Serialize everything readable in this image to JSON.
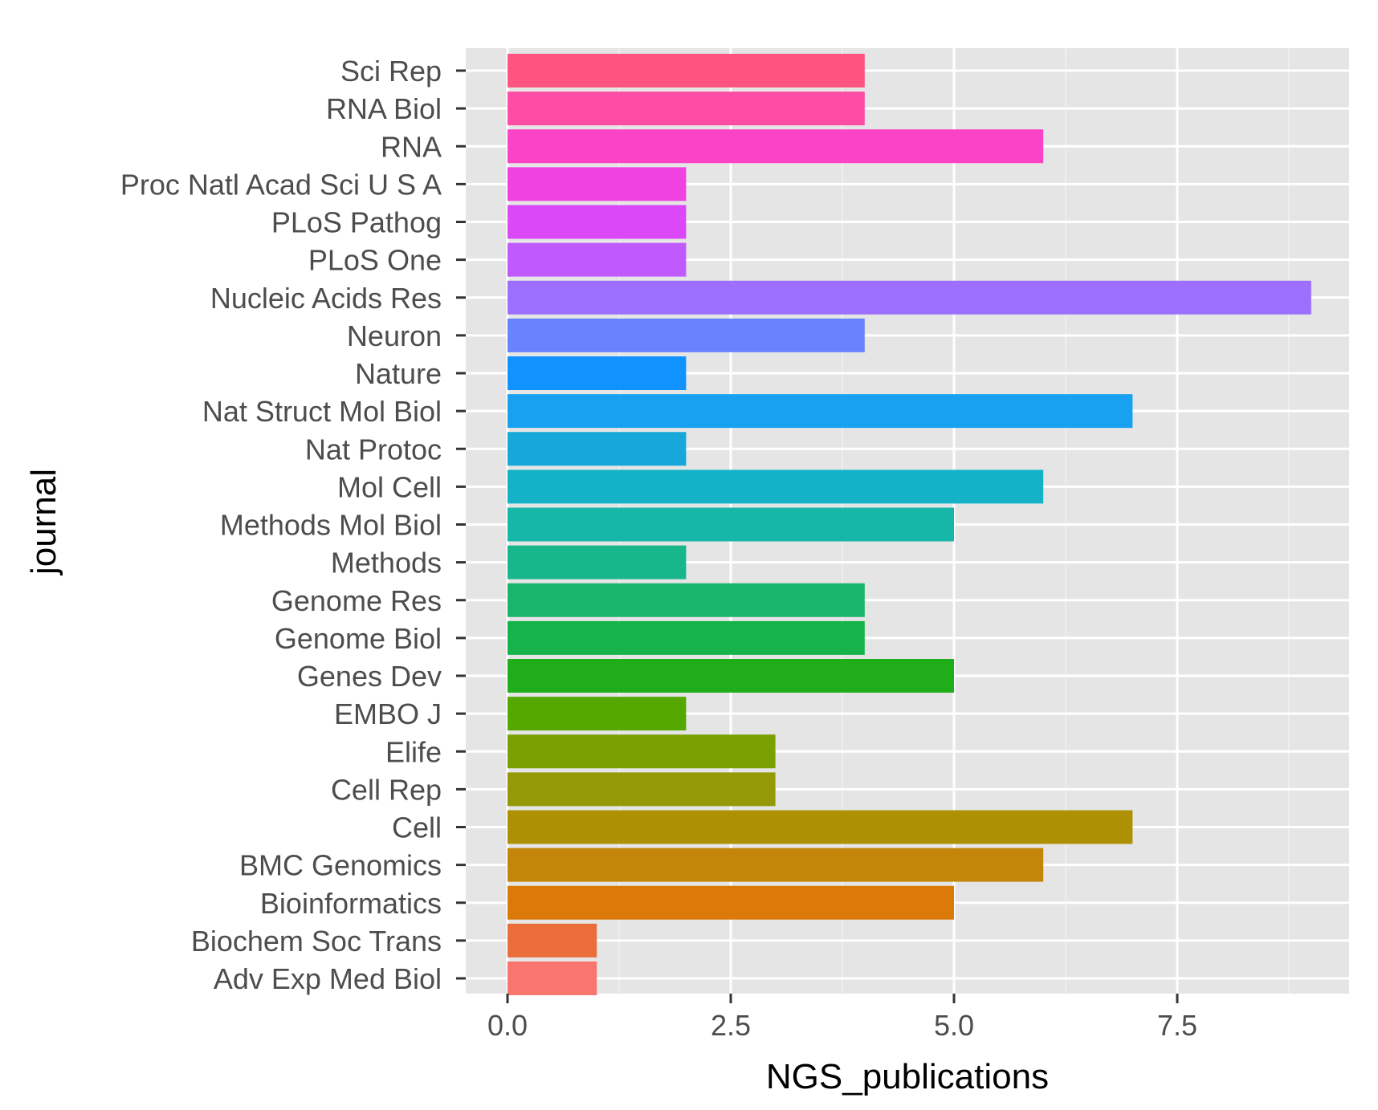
{
  "chart_data": {
    "type": "bar",
    "orientation": "horizontal",
    "xlabel": "NGS_publications",
    "ylabel": "journal",
    "xlim": [
      0,
      9.45
    ],
    "x_ticks": [
      "0.0",
      "2.5",
      "5.0",
      "7.5"
    ],
    "x_tick_values": [
      0,
      2.5,
      5,
      7.5
    ],
    "grid": true,
    "legend": "none",
    "categories": [
      "Adv Exp Med Biol",
      "Biochem Soc Trans",
      "Bioinformatics",
      "BMC Genomics",
      "Cell",
      "Cell Rep",
      "Elife",
      "EMBO J",
      "Genes Dev",
      "Genome Biol",
      "Genome Res",
      "Methods",
      "Methods Mol Biol",
      "Mol Cell",
      "Nat Protoc",
      "Nat Struct Mol Biol",
      "Nature",
      "Neuron",
      "Nucleic Acids Res",
      "PLoS One",
      "PLoS Pathog",
      "Proc Natl Acad Sci U S A",
      "RNA",
      "RNA Biol",
      "Sci Rep"
    ],
    "values": [
      1,
      1,
      5,
      6,
      7,
      3,
      3,
      2,
      5,
      4,
      4,
      2,
      5,
      6,
      2,
      7,
      2,
      4,
      9,
      2,
      2,
      2,
      6,
      4,
      4
    ],
    "colors": [
      "#F8766D",
      "#EB6D3A",
      "#DB7A08",
      "#C48609",
      "#AE9005",
      "#949908",
      "#7AA101",
      "#54A800",
      "#1FAE19",
      "#15B349",
      "#1AB56D",
      "#17B78B",
      "#16B7A8",
      "#14B2C6",
      "#17A8DA",
      "#18A0F1",
      "#1193FF",
      "#6983FF",
      "#9C6FFF",
      "#C05AFF",
      "#DA48F7",
      "#EF42DE",
      "#FB44C5",
      "#FF4DA6",
      "#FF5480"
    ]
  }
}
